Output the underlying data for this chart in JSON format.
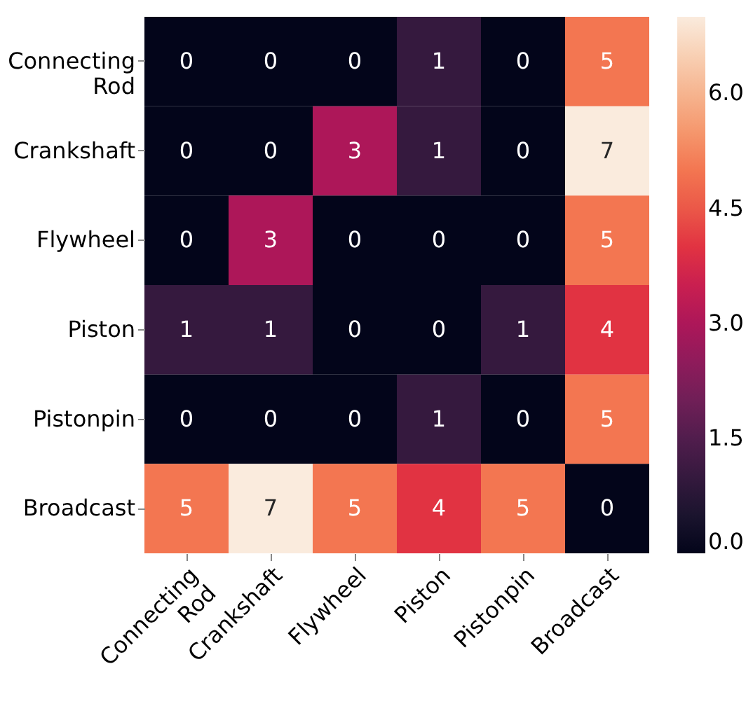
{
  "chart_data": {
    "type": "heatmap",
    "categories": [
      "Connecting Rod",
      "Crankshaft",
      "Flywheel",
      "Piston",
      "Pistonpin",
      "Broadcast"
    ],
    "y_categories": [
      "Connecting Rod",
      "Crankshaft",
      "Flywheel",
      "Piston",
      "Pistonpin",
      "Broadcast"
    ],
    "cells": [
      [
        0,
        0,
        0,
        1,
        0,
        5
      ],
      [
        0,
        0,
        3,
        1,
        0,
        7
      ],
      [
        0,
        3,
        0,
        0,
        0,
        5
      ],
      [
        1,
        1,
        0,
        0,
        1,
        4
      ],
      [
        0,
        0,
        0,
        1,
        0,
        5
      ],
      [
        5,
        7,
        5,
        4,
        5,
        0
      ]
    ],
    "data_labels": true,
    "clim": [
      0,
      7
    ],
    "cticks": [
      {
        "value": 0,
        "label": "0.0"
      },
      {
        "value": 1.5,
        "label": "1.5"
      },
      {
        "value": 3,
        "label": "3.0"
      },
      {
        "value": 4.5,
        "label": "4.5"
      },
      {
        "value": 6,
        "label": "6.0"
      }
    ]
  }
}
